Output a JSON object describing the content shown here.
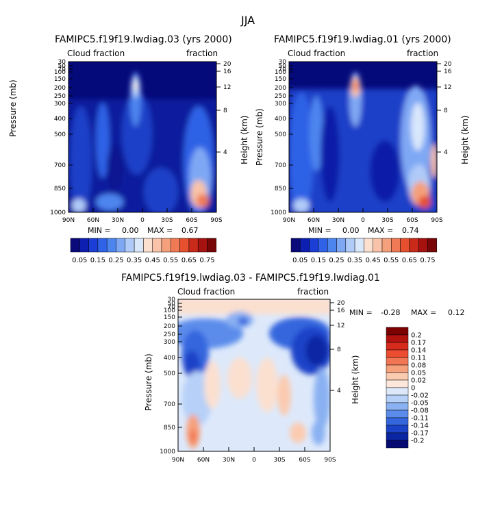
{
  "figure": {
    "season": "JJA",
    "difference_title": "FAMIPC5.f19f19.lwdiag.03 - FAMIPC5.f19f19.lwdiag.01"
  },
  "panels": [
    {
      "id": "case03",
      "title": "FAMIPC5.f19f19.lwdiag.03 (yrs 2000)",
      "left_label": "Cloud fraction",
      "right_label": "fraction",
      "y_label": "Pressure (mb)",
      "y2_label": "Height (km)",
      "min_label": "MIN =",
      "min_value": "0.00",
      "max_label": "MAX =",
      "max_value": "0.67"
    },
    {
      "id": "case01",
      "title": "FAMIPC5.f19f19.lwdiag.01 (yrs 2000)",
      "left_label": "Cloud fraction",
      "right_label": "fraction",
      "y_label": "Pressure (mb)",
      "y2_label": "Height (km)",
      "min_label": "MIN =",
      "min_value": "0.00",
      "max_label": "MAX =",
      "max_value": "0.74"
    },
    {
      "id": "diff",
      "title": "FAMIPC5.f19f19.lwdiag.03 - FAMIPC5.f19f19.lwdiag.01",
      "left_label": "Cloud fraction",
      "right_label": "fraction",
      "y_label": "Pressure (mb)",
      "y2_label": "Height (km)",
      "min_label": "MIN =",
      "min_value": "-0.28",
      "max_label": "MAX =",
      "max_value": "0.12"
    }
  ],
  "colorbars": {
    "abs_labels": [
      "0.05",
      "0.15",
      "0.25",
      "0.35",
      "0.45",
      "0.55",
      "0.65",
      "0.75"
    ],
    "abs_colors": [
      "#0a0a7a",
      "#0c1fb0",
      "#1b3fd6",
      "#2f62e6",
      "#4d85ef",
      "#7fa8f4",
      "#b0cbf8",
      "#d9e7fb",
      "#fbe0d0",
      "#f8c3a8",
      "#f4a07c",
      "#ef7a55",
      "#e6502f",
      "#c92a1a",
      "#a5120f",
      "#780606"
    ],
    "diff_labels": [
      "0.2",
      "0.17",
      "0.14",
      "0.11",
      "0.08",
      "0.05",
      "0.02",
      "0",
      "-0.02",
      "-0.05",
      "-0.08",
      "-0.11",
      "-0.14",
      "-0.17",
      "-0.2"
    ],
    "diff_colors": [
      "#7d0000",
      "#b2130f",
      "#d52a1c",
      "#ec4c30",
      "#f37654",
      "#f7a17c",
      "#fbcbb0",
      "#fce7da",
      "#dde9fb",
      "#b6d0f8",
      "#8ab1f2",
      "#5c8ceb",
      "#3466de",
      "#1a43c8",
      "#0b26a3",
      "#050a72"
    ]
  },
  "chart_data": [
    {
      "type": "heatmap",
      "title": "FAMIPC5.f19f19.lwdiag.03 (yrs 2000)",
      "variable": "Cloud fraction",
      "units": "fraction",
      "xlabel": "",
      "ylabel": "Pressure (mb)",
      "y2label": "Height (km)",
      "x_ticks": [
        "90N",
        "60N",
        "30N",
        "0",
        "30S",
        "60S",
        "90S"
      ],
      "y_ticks": [
        30,
        50,
        70,
        100,
        150,
        200,
        250,
        300,
        400,
        500,
        700,
        850,
        1000
      ],
      "y2_ticks": [
        20,
        16,
        12,
        8,
        4
      ],
      "ylim": [
        30,
        1000
      ],
      "zmin": 0.0,
      "zmax": 0.67,
      "contour_levels": [
        0.05,
        0.1,
        0.15,
        0.2,
        0.25,
        0.3,
        0.35,
        0.4,
        0.45,
        0.5,
        0.55,
        0.6,
        0.65,
        0.7,
        0.75
      ]
    },
    {
      "type": "heatmap",
      "title": "FAMIPC5.f19f19.lwdiag.01 (yrs 2000)",
      "variable": "Cloud fraction",
      "units": "fraction",
      "xlabel": "",
      "ylabel": "Pressure (mb)",
      "y2label": "Height (km)",
      "x_ticks": [
        "90N",
        "60N",
        "30N",
        "0",
        "30S",
        "60S",
        "90S"
      ],
      "y_ticks": [
        30,
        50,
        70,
        100,
        150,
        200,
        250,
        300,
        400,
        500,
        700,
        850,
        1000
      ],
      "y2_ticks": [
        20,
        16,
        12,
        8,
        4
      ],
      "ylim": [
        30,
        1000
      ],
      "zmin": 0.0,
      "zmax": 0.74,
      "contour_levels": [
        0.05,
        0.1,
        0.15,
        0.2,
        0.25,
        0.3,
        0.35,
        0.4,
        0.45,
        0.5,
        0.55,
        0.6,
        0.65,
        0.7,
        0.75
      ]
    },
    {
      "type": "heatmap",
      "title": "FAMIPC5.f19f19.lwdiag.03 - FAMIPC5.f19f19.lwdiag.01",
      "variable": "Cloud fraction",
      "units": "fraction",
      "xlabel": "",
      "ylabel": "Pressure (mb)",
      "y2label": "Height (km)",
      "x_ticks": [
        "90N",
        "60N",
        "30N",
        "0",
        "30S",
        "60S",
        "90S"
      ],
      "y_ticks": [
        30,
        50,
        70,
        100,
        150,
        200,
        250,
        300,
        400,
        500,
        700,
        850,
        1000
      ],
      "y2_ticks": [
        20,
        16,
        12,
        8,
        4
      ],
      "ylim": [
        30,
        1000
      ],
      "zmin": -0.28,
      "zmax": 0.12,
      "contour_levels": [
        -0.2,
        -0.17,
        -0.14,
        -0.11,
        -0.08,
        -0.05,
        -0.02,
        0,
        0.02,
        0.05,
        0.08,
        0.11,
        0.14,
        0.17,
        0.2
      ]
    }
  ]
}
